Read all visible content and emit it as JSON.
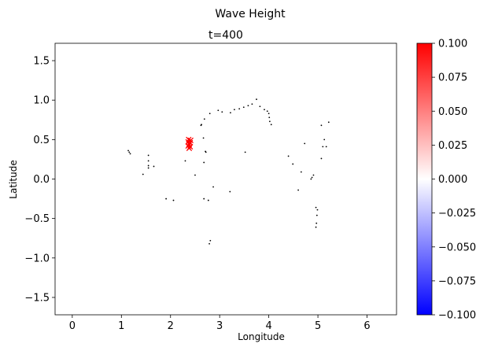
{
  "figure": {
    "suptitle": "Wave Height",
    "title": "t=400"
  },
  "chart_data": {
    "type": "scatter",
    "title": "t=400",
    "xlabel": "Longitude",
    "ylabel": "Latitude",
    "xlim": [
      -0.35,
      6.6
    ],
    "ylim": [
      -1.72,
      1.72
    ],
    "xticks": [
      0,
      1,
      2,
      3,
      4,
      5,
      6
    ],
    "xtick_labels": [
      "0",
      "1",
      "2",
      "3",
      "4",
      "5",
      "6"
    ],
    "yticks": [
      -1.5,
      -1.0,
      -0.5,
      0.0,
      0.5,
      1.0,
      1.5
    ],
    "ytick_labels": [
      "−1.5",
      "−1.0",
      "−0.5",
      "0.0",
      "0.5",
      "1.0",
      "1.5"
    ],
    "grid": false,
    "point_color": "#000000",
    "highlight_color": "#ff0000",
    "points": [
      {
        "x": 1.14,
        "y": 0.36
      },
      {
        "x": 1.16,
        "y": 0.34
      },
      {
        "x": 1.18,
        "y": 0.32
      },
      {
        "x": 1.55,
        "y": 0.3
      },
      {
        "x": 1.55,
        "y": 0.23
      },
      {
        "x": 1.55,
        "y": 0.17
      },
      {
        "x": 1.55,
        "y": 0.14
      },
      {
        "x": 1.66,
        "y": 0.16
      },
      {
        "x": 1.44,
        "y": 0.06
      },
      {
        "x": 1.91,
        "y": -0.25
      },
      {
        "x": 2.06,
        "y": -0.27
      },
      {
        "x": 2.3,
        "y": 0.23
      },
      {
        "x": 2.5,
        "y": 0.05
      },
      {
        "x": 2.62,
        "y": 0.68
      },
      {
        "x": 2.63,
        "y": 0.69
      },
      {
        "x": 2.69,
        "y": 0.76
      },
      {
        "x": 2.67,
        "y": 0.52
      },
      {
        "x": 2.72,
        "y": 0.34
      },
      {
        "x": 2.68,
        "y": 0.21
      },
      {
        "x": 2.71,
        "y": 0.35
      },
      {
        "x": 2.8,
        "y": 0.83
      },
      {
        "x": 2.97,
        "y": 0.87
      },
      {
        "x": 3.05,
        "y": 0.85
      },
      {
        "x": 3.22,
        "y": 0.84
      },
      {
        "x": 3.3,
        "y": 0.88
      },
      {
        "x": 3.4,
        "y": 0.89
      },
      {
        "x": 3.49,
        "y": 0.91
      },
      {
        "x": 3.58,
        "y": 0.93
      },
      {
        "x": 3.66,
        "y": 0.95
      },
      {
        "x": 3.75,
        "y": 1.01
      },
      {
        "x": 3.82,
        "y": 0.92
      },
      {
        "x": 3.91,
        "y": 0.88
      },
      {
        "x": 3.97,
        "y": 0.86
      },
      {
        "x": 4.0,
        "y": 0.83
      },
      {
        "x": 4.01,
        "y": 0.78
      },
      {
        "x": 4.02,
        "y": 0.73
      },
      {
        "x": 4.05,
        "y": 0.69
      },
      {
        "x": 3.52,
        "y": 0.34
      },
      {
        "x": 2.87,
        "y": -0.1
      },
      {
        "x": 3.21,
        "y": -0.16
      },
      {
        "x": 2.68,
        "y": -0.25
      },
      {
        "x": 2.77,
        "y": -0.27
      },
      {
        "x": 2.81,
        "y": -0.78
      },
      {
        "x": 2.79,
        "y": -0.82
      },
      {
        "x": 4.4,
        "y": 0.29
      },
      {
        "x": 4.49,
        "y": 0.19
      },
      {
        "x": 4.6,
        "y": -0.14
      },
      {
        "x": 4.66,
        "y": 0.09
      },
      {
        "x": 4.73,
        "y": 0.45
      },
      {
        "x": 4.86,
        "y": 0.0
      },
      {
        "x": 4.88,
        "y": 0.02
      },
      {
        "x": 4.91,
        "y": 0.05
      },
      {
        "x": 4.96,
        "y": -0.36
      },
      {
        "x": 4.99,
        "y": -0.39
      },
      {
        "x": 4.98,
        "y": -0.46
      },
      {
        "x": 4.97,
        "y": -0.56
      },
      {
        "x": 4.96,
        "y": -0.61
      },
      {
        "x": 5.07,
        "y": 0.68
      },
      {
        "x": 5.13,
        "y": 0.5
      },
      {
        "x": 5.1,
        "y": 0.41
      },
      {
        "x": 5.17,
        "y": 0.41
      },
      {
        "x": 5.07,
        "y": 0.26
      },
      {
        "x": 5.22,
        "y": 0.72
      }
    ],
    "highlighted": [
      {
        "x": 2.37,
        "y": 0.5
      },
      {
        "x": 2.41,
        "y": 0.49
      },
      {
        "x": 2.36,
        "y": 0.47
      },
      {
        "x": 2.4,
        "y": 0.46
      },
      {
        "x": 2.38,
        "y": 0.44
      },
      {
        "x": 2.36,
        "y": 0.42
      },
      {
        "x": 2.4,
        "y": 0.41
      },
      {
        "x": 2.38,
        "y": 0.39
      }
    ],
    "colorbar": {
      "min": -0.1,
      "max": 0.1,
      "colors": [
        "#0000ff",
        "#ffffff",
        "#ff0000"
      ],
      "ticks": [
        -0.1,
        -0.075,
        -0.05,
        -0.025,
        0.0,
        0.025,
        0.05,
        0.075,
        0.1
      ],
      "tick_labels": [
        "−0.100",
        "−0.075",
        "−0.050",
        "−0.025",
        "0.000",
        "0.025",
        "0.050",
        "0.075",
        "0.100"
      ]
    }
  }
}
